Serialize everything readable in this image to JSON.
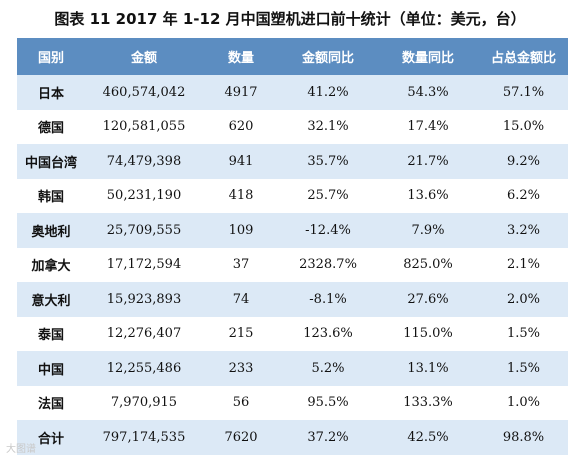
{
  "title": "图表 11    2017 年 1-12 月中国塑机进口前十统计（单位：美元，台）",
  "headers": [
    "国别",
    "金额",
    "数量",
    "金额同比",
    "数量同比",
    "占总金额比"
  ],
  "rows": [
    [
      "日本",
      "460,574,042",
      "4917",
      "41.2%",
      "54.3%",
      "57.1%"
    ],
    [
      "德国",
      "120,581,055",
      "620",
      "32.1%",
      "17.4%",
      "15.0%"
    ],
    [
      "中国台湾",
      "74,479,398",
      "941",
      "35.7%",
      "21.7%",
      "9.2%"
    ],
    [
      "韩国",
      "50,231,190",
      "418",
      "25.7%",
      "13.6%",
      "6.2%"
    ],
    [
      "奥地利",
      "25,709,555",
      "109",
      "-12.4%",
      "7.9%",
      "3.2%"
    ],
    [
      "加拿大",
      "17,172,594",
      "37",
      "2328.7%",
      "825.0%",
      "2.1%"
    ],
    [
      "意大利",
      "15,923,893",
      "74",
      "-8.1%",
      "27.6%",
      "2.0%"
    ],
    [
      "泰国",
      "12,276,407",
      "215",
      "123.6%",
      "115.0%",
      "1.5%"
    ],
    [
      "中国",
      "12,255,486",
      "233",
      "5.2%",
      "13.1%",
      "1.5%"
    ],
    [
      "法国",
      "7,970,915",
      "56",
      "95.5%",
      "133.3%",
      "1.0%"
    ],
    [
      "合计",
      "797,174,535",
      "7620",
      "37.2%",
      "42.5%",
      "98.8%"
    ]
  ],
  "watermark": "大图谱"
}
